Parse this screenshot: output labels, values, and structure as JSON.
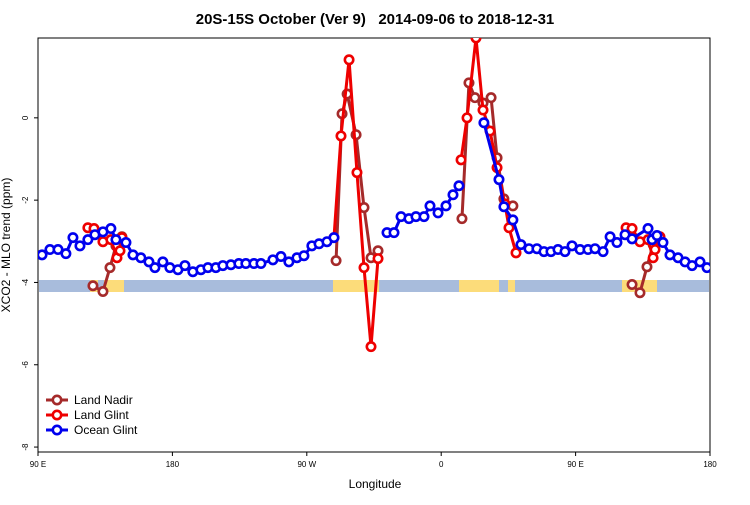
{
  "chart_data": {
    "type": "line",
    "title": "20S-15S October (Ver 9)   2014-09-06 to 2018-12-31",
    "x_label": "Longitude",
    "y_label": "XCO2 - MLO trend (ppm)",
    "xlim": [
      90,
      540
    ],
    "xticks": [
      {
        "value": 90,
        "label": "90 E"
      },
      {
        "value": 180,
        "label": "180"
      },
      {
        "value": 270,
        "label": "90 W"
      },
      {
        "value": 360,
        "label": "0"
      },
      {
        "value": 450,
        "label": "90 E"
      },
      {
        "value": 540,
        "label": "180"
      }
    ],
    "ylim": [
      -8.12,
      1.94
    ],
    "yticks": [
      0,
      -2,
      -4,
      -6,
      -8
    ],
    "legend": "bottom-left",
    "series": [
      {
        "name": "Land Nadir",
        "color": "#a52a2a",
        "x": [
          126.8,
          133.5,
          138.2,
          142.2,
          146.2,
          220,
          289.6,
          293.6,
          297,
          303,
          308.3,
          313,
          317.7,
          350,
          373.9,
          378.6,
          382.6,
          388,
          393.4,
          397.4,
          402,
          408,
          450,
          487.8,
          493.1,
          497.8,
          501.9,
          505.9
        ],
        "values": [
          -4.08,
          -4.22,
          -3.64,
          -3.11,
          -2.89,
          null,
          -3.47,
          0.1,
          0.58,
          -0.41,
          -2.18,
          -3.4,
          -3.23,
          null,
          -2.45,
          0.85,
          0.49,
          0.36,
          0.49,
          -0.97,
          -1.97,
          -2.14,
          null,
          -4.05,
          -4.25,
          -3.62,
          -3.08,
          -2.89
        ]
      },
      {
        "name": "Land Glint",
        "color": "#ee0000",
        "x": [
          123.4,
          127.5,
          133.5,
          138.8,
          142.9,
          144.9,
          146.2,
          220,
          288.2,
          292.9,
          298.3,
          303.6,
          308.3,
          313,
          317.7,
          350,
          373.3,
          377.3,
          383.3,
          388,
          392.7,
          397.4,
          402.7,
          405.4,
          410.1,
          450,
          483.8,
          487.8,
          493.1,
          498.5,
          501.9,
          503.2,
          506.5
        ],
        "values": [
          -2.67,
          -2.69,
          -3.01,
          -2.96,
          -3.4,
          -3.23,
          -2.91,
          null,
          -2.91,
          -0.44,
          1.41,
          -1.33,
          -3.64,
          -5.56,
          -3.42,
          null,
          -1.02,
          0,
          1.94,
          0.19,
          -0.32,
          -1.21,
          -2.09,
          -2.67,
          -3.28,
          null,
          -2.67,
          -2.69,
          -3.01,
          -2.96,
          -3.4,
          -3.2,
          -2.89
        ]
      },
      {
        "name": "Ocean Glint",
        "color": "#0000ee",
        "x": [
          92.7,
          98,
          103.4,
          108.7,
          113.4,
          118.1,
          123.4,
          128.1,
          133.5,
          138.8,
          142.2,
          148.9,
          153.6,
          158.9,
          164.3,
          168.3,
          173.6,
          178.3,
          183.7,
          188.4,
          193.7,
          199.1,
          203.8,
          209.1,
          213.8,
          219.2,
          224.5,
          229.2,
          234.6,
          239.3,
          247.3,
          252.7,
          258,
          263.4,
          268.1,
          273.4,
          278.2,
          283.5,
          288.2,
          300,
          323.7,
          328.4,
          333.1,
          338.4,
          343.1,
          348.5,
          352.5,
          357.9,
          363.2,
          367.9,
          371.9,
          380,
          388.6,
          398.7,
          402,
          408,
          413.4,
          418.8,
          424.1,
          428.8,
          433.5,
          438.2,
          442.9,
          447.6,
          453,
          458.3,
          463,
          468.4,
          473.1,
          477.7,
          483.1,
          487.8,
          498.5,
          501.2,
          504.5,
          508.5,
          513.2,
          518.6,
          523.3,
          528,
          533.3,
          538
        ],
        "values": [
          -3.33,
          -3.2,
          -3.2,
          -3.3,
          -2.91,
          -3.11,
          -2.96,
          -2.84,
          -2.77,
          -2.69,
          -2.96,
          -3.03,
          -3.33,
          -3.4,
          -3.5,
          -3.64,
          -3.5,
          -3.64,
          -3.69,
          -3.59,
          -3.74,
          -3.69,
          -3.64,
          -3.64,
          -3.59,
          -3.57,
          -3.54,
          -3.54,
          -3.54,
          -3.54,
          -3.45,
          -3.37,
          -3.5,
          -3.4,
          -3.35,
          -3.11,
          -3.06,
          -3.01,
          -2.91,
          null,
          -2.79,
          -2.79,
          -2.4,
          -2.45,
          -2.4,
          -2.4,
          -2.14,
          -2.31,
          -2.14,
          -1.87,
          -1.65,
          null,
          -0.12,
          -1.5,
          -2.16,
          -2.48,
          -3.08,
          -3.18,
          -3.18,
          -3.25,
          -3.25,
          -3.2,
          -3.25,
          -3.11,
          -3.2,
          -3.2,
          -3.18,
          -3.25,
          -2.89,
          -3.03,
          -2.84,
          -2.94,
          -2.69,
          -2.96,
          -2.86,
          -3.03,
          -3.33,
          -3.4,
          -3.5,
          -3.59,
          -3.5,
          -3.64
        ]
      }
    ]
  }
}
